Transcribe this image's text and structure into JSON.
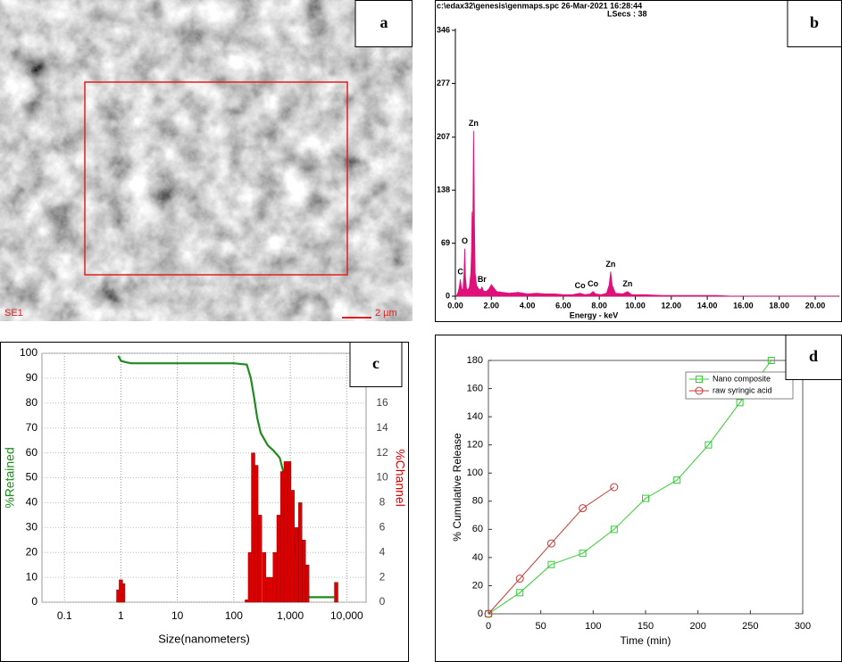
{
  "panels": {
    "labels": [
      "a",
      "b",
      "c",
      "d"
    ]
  },
  "image": {
    "labels": [
      "SE1",
      "2 µm"
    ]
  },
  "chart_data": [
    {
      "type": "area",
      "title": "c:\\edax32\\genesis\\genmaps.spc  26-Mar-2021 16:28:44",
      "subtitle": "LSecs :  38",
      "xlabel": "Energy - keV",
      "color": "#e0107a",
      "xlim": [
        0,
        21.34
      ],
      "ylim": [
        0,
        346
      ],
      "xticks": [
        {
          "value": 0,
          "label": "0.00"
        },
        {
          "value": 2,
          "label": "2.00"
        },
        {
          "value": 4,
          "label": "4.00"
        },
        {
          "value": 6,
          "label": "6.00"
        },
        {
          "value": 8,
          "label": "8.00"
        },
        {
          "value": 10,
          "label": "10.00"
        },
        {
          "value": 12,
          "label": "12.00"
        },
        {
          "value": 14,
          "label": "14.00"
        },
        {
          "value": 16,
          "label": "16.00"
        },
        {
          "value": 18,
          "label": "18.00"
        },
        {
          "value": 20,
          "label": "20.00"
        }
      ],
      "yticks": [
        0,
        69,
        138,
        207,
        277,
        346
      ],
      "x": [
        0.05,
        0.15,
        0.22,
        0.28,
        0.34,
        0.42,
        0.48,
        0.52,
        0.56,
        0.62,
        0.7,
        0.78,
        0.86,
        0.9,
        0.93,
        0.96,
        1.01,
        1.06,
        1.1,
        1.18,
        1.28,
        1.4,
        1.48,
        1.56,
        1.7,
        1.85,
        2.0,
        2.3,
        2.6,
        3.0,
        3.5,
        4.0,
        4.5,
        5.0,
        5.5,
        6.0,
        6.5,
        6.93,
        7.2,
        7.5,
        7.65,
        7.8,
        8.1,
        8.4,
        8.55,
        8.63,
        8.72,
        8.9,
        9.3,
        9.57,
        9.8,
        10.5,
        11.5,
        12.5,
        13.5,
        14.5,
        15.5,
        17,
        18.5,
        20,
        21.3
      ],
      "values": [
        0,
        5,
        12,
        22,
        10,
        8,
        30,
        62,
        25,
        10,
        8,
        12,
        30,
        60,
        110,
        60,
        215,
        95,
        30,
        14,
        10,
        8,
        12,
        7,
        6,
        9,
        15,
        6,
        5,
        4,
        5,
        3,
        4,
        3,
        3,
        2,
        2,
        4,
        2,
        3,
        6,
        3,
        2,
        4,
        15,
        32,
        14,
        4,
        3,
        6,
        2,
        2,
        1,
        1,
        1,
        1,
        0,
        0,
        0,
        0,
        0
      ],
      "annotations": [
        {
          "text": "C",
          "x": 0.28,
          "y": 22
        },
        {
          "text": "O",
          "x": 0.52,
          "y": 62
        },
        {
          "text": "Zn",
          "x": 1.01,
          "y": 215
        },
        {
          "text": "Br",
          "x": 1.48,
          "y": 12
        },
        {
          "text": "Co",
          "x": 6.93,
          "y": 4
        },
        {
          "text": "Co",
          "x": 7.65,
          "y": 6
        },
        {
          "text": "Zn",
          "x": 8.63,
          "y": 32
        },
        {
          "text": "Zn",
          "x": 9.57,
          "y": 6
        }
      ]
    },
    {
      "type": "combo",
      "xscale": "log",
      "grid": true,
      "xlabel": "Size(nanometers)",
      "ylabel": "%Retained",
      "y2label": "%Channel",
      "xlim": [
        0.04,
        22000
      ],
      "ylim": [
        0,
        100
      ],
      "y2lim": [
        0,
        20
      ],
      "xticks": [
        0.1,
        1,
        10,
        100,
        {
          "value": 1000,
          "label": "1,000"
        },
        {
          "value": 10000,
          "label": "10,000"
        }
      ],
      "yticks": [
        0,
        10,
        20,
        30,
        40,
        50,
        60,
        70,
        80,
        90,
        100
      ],
      "y2ticks": [
        0,
        2,
        4,
        6,
        8,
        10,
        12,
        14,
        16
      ],
      "series": [
        {
          "type": "line",
          "color": "#1e8c1e",
          "x": [
            0.9,
            1.0,
            1.2,
            1.5,
            10,
            100,
            170,
            200,
            230,
            260,
            300,
            400,
            500,
            650,
            800,
            1000,
            1200,
            1500,
            1800,
            2200,
            6000
          ],
          "values": [
            99,
            97,
            96.5,
            96,
            96,
            96,
            95.5,
            90,
            82,
            74,
            68,
            63,
            61,
            58,
            50,
            37,
            22,
            8,
            3,
            2,
            2
          ]
        },
        {
          "type": "bar",
          "axis": "y2",
          "color": "#dd0000",
          "x": [
            0.9,
            1.0,
            1.1,
            170,
            193,
            220,
            250,
            290,
            345,
            400,
            460,
            530,
            620,
            720,
            830,
            960,
            1100,
            1290,
            1500,
            1740,
            2000,
            6500
          ],
          "values": [
            1.0,
            1.8,
            1.5,
            0.2,
            4,
            12,
            11,
            7,
            4,
            2,
            2,
            4,
            7,
            10.5,
            11.3,
            11.3,
            9,
            6,
            8,
            5,
            3,
            1.6
          ]
        }
      ]
    },
    {
      "type": "line",
      "xlabel": "Time (min)",
      "ylabel": "% Cumulative Release",
      "legend": "upper right",
      "xlim": [
        0,
        300
      ],
      "ylim": [
        0,
        180
      ],
      "xticks": [
        0,
        50,
        100,
        150,
        200,
        250,
        300
      ],
      "yticks": [
        0,
        20,
        40,
        60,
        80,
        100,
        120,
        140,
        160,
        180
      ],
      "series": [
        {
          "name": "Nano composite",
          "color": "#33cc33",
          "marker": "square",
          "x": [
            0,
            30,
            60,
            90,
            120,
            150,
            180,
            210,
            240,
            270
          ],
          "values": [
            0,
            15,
            35,
            43,
            60,
            82,
            95,
            120,
            150,
            180
          ]
        },
        {
          "name": "raw syringic acid",
          "color": "#cc3333",
          "marker": "circle",
          "x": [
            0,
            30,
            60,
            90,
            120
          ],
          "values": [
            0,
            25,
            50,
            75,
            90
          ]
        }
      ]
    }
  ]
}
